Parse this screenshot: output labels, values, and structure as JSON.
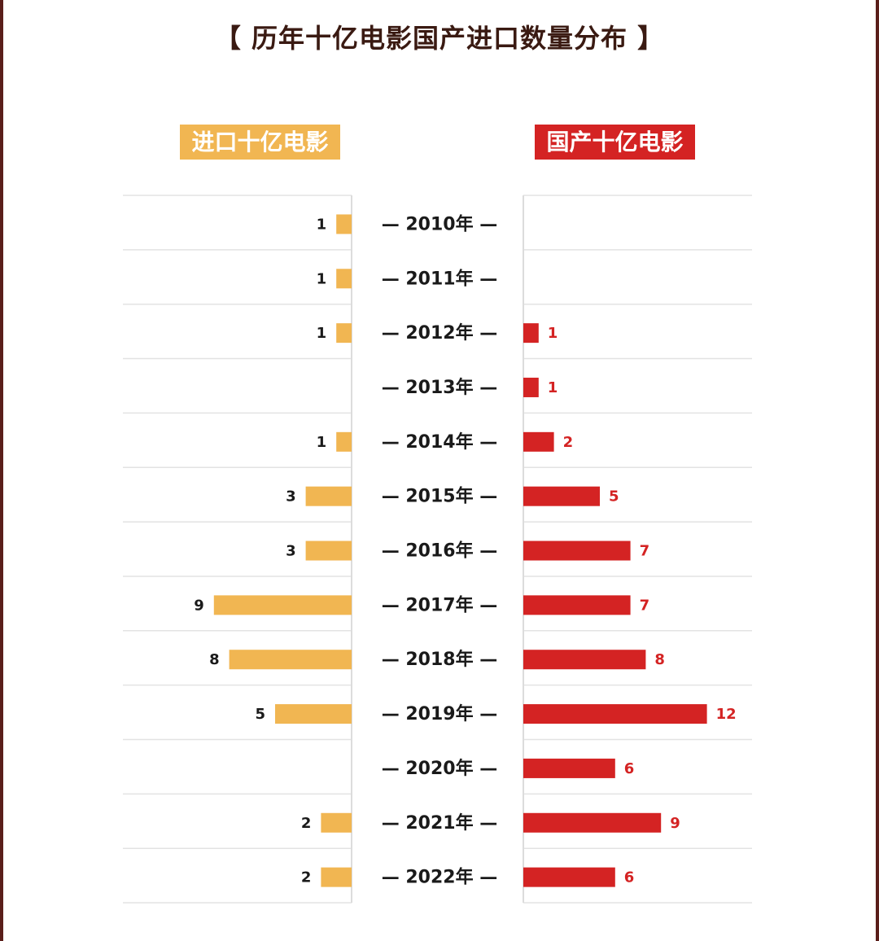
{
  "title": "【 历年十亿电影国产进口数量分布 】",
  "chart_data": {
    "type": "bar",
    "categories": [
      "2010年",
      "2011年",
      "2012年",
      "2013年",
      "2014年",
      "2015年",
      "2016年",
      "2017年",
      "2018年",
      "2019年",
      "2020年",
      "2021年",
      "2022年"
    ],
    "series": [
      {
        "name": "进口十亿电影",
        "color": "#f1b652",
        "values": [
          1,
          1,
          1,
          0,
          1,
          3,
          3,
          9,
          8,
          5,
          0,
          2,
          2
        ]
      },
      {
        "name": "国产十亿电影",
        "color": "#d42323",
        "values": [
          0,
          0,
          1,
          1,
          2,
          5,
          7,
          7,
          8,
          12,
          6,
          9,
          6
        ]
      }
    ]
  },
  "colors": {
    "import": "#f1b652",
    "domestic": "#d42323",
    "frame": "#5a1e1a",
    "title": "#3a1a12"
  }
}
